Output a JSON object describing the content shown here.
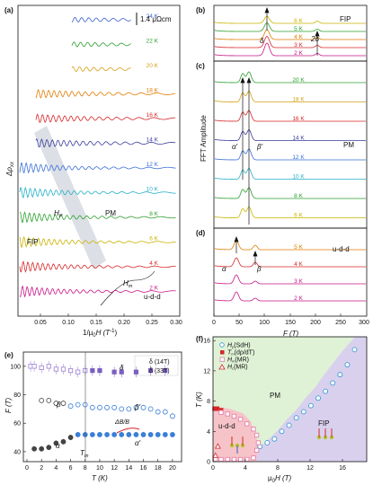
{
  "panels": {
    "a": {
      "label": "(a)",
      "ylabel": "Δρ",
      "ylabel_sub": "xx",
      "xlabel": "1/μ",
      "xlabel_sub": "0",
      "xlabel_end": "H (T",
      "xlabel_sup": "-1",
      "xlabel_close": ")",
      "xticks": [
        "0.05",
        "0.10",
        "0.15",
        "0.20",
        "0.25",
        "0.30"
      ],
      "scalebar": "1.4 μΩcm",
      "region_fip": "FIP",
      "region_pm": "PM",
      "region_udd": "u-d-d",
      "hp_label": "H",
      "hp_sub": "P",
      "hm_label": "H",
      "hm_sub": "m",
      "temps": [
        "24 K",
        "22 K",
        "20 K",
        "18 K",
        "16 K",
        "14 K",
        "12 K",
        "10 K",
        "8 K",
        "6 K",
        "4 K",
        "2 K"
      ],
      "colors": [
        "#3a5fcd",
        "#2ca02c",
        "#d4a017",
        "#e07b00",
        "#d62728",
        "#3b3b9c",
        "#3a6fd8",
        "#27b0c8",
        "#2ca02c",
        "#c9b400",
        "#d62728",
        "#c71585"
      ]
    },
    "b": {
      "label": "(b)",
      "tag": "FIP",
      "temps": [
        "6 K",
        "5 K",
        "4 K",
        "3 K",
        "2 K"
      ],
      "colors": [
        "#c9b400",
        "#2ca02c",
        "#e07b00",
        "#d62728",
        "#c71585"
      ],
      "delta": "δ",
      "two_delta": "2δ"
    },
    "c": {
      "label": "(c)",
      "tag": "PM",
      "ylabel": "FFT Amplitude",
      "temps": [
        "20 K",
        "18 K",
        "16 K",
        "14 K",
        "12 K",
        "10 K",
        "8 K",
        "6 K"
      ],
      "colors": [
        "#2ca02c",
        "#d4a017",
        "#d62728",
        "#3b3b9c",
        "#3a6fd8",
        "#27b0c8",
        "#2ca02c",
        "#c9b400"
      ],
      "alpha_p": "α′",
      "beta_p": "β′"
    },
    "d": {
      "label": "(d)",
      "tag": "u-d-d",
      "temps": [
        "5 K",
        "4 K",
        "3 K",
        "2 K"
      ],
      "colors": [
        "#e07b00",
        "#d62728",
        "#c71585",
        "#c71585"
      ],
      "alpha": "α",
      "beta": "β",
      "xlabel": "F (T)",
      "xticks": [
        "0",
        "50",
        "100",
        "150",
        "200",
        "250",
        "300"
      ]
    },
    "e": {
      "label": "(e)",
      "ylabel": "F (T)",
      "xlabel": "T (K)",
      "yticks": [
        "40",
        "60",
        "80",
        "100"
      ],
      "xticks": [
        "0",
        "2",
        "4",
        "6",
        "8",
        "10",
        "12",
        "14",
        "16",
        "18",
        "20"
      ],
      "legend": [
        "δ (14T)",
        "δ (33T)"
      ],
      "labels": {
        "delta": "δ",
        "beta": "β",
        "alpha": "α",
        "beta_p": "β′",
        "alpha_p": "α′",
        "tm": "T",
        "tm_sub": "m",
        "db": "ΔB/B"
      }
    },
    "f": {
      "label": "(f)",
      "ylabel": "T (K)",
      "xlabel": "μ",
      "xlabel_sub": "0",
      "xlabel_end": "H (T)",
      "yticks": [
        "0",
        "4",
        "8",
        "12",
        "16"
      ],
      "xticks": [
        "0",
        "4",
        "8",
        "12",
        "16"
      ],
      "legend": [
        {
          "sym": "H",
          "sub": "p",
          "src": "(SdH)"
        },
        {
          "sym": "T",
          "sub": "m",
          "src": "(dρ/dT)"
        },
        {
          "sym": "H",
          "sub": "m",
          "src": "(MR)"
        },
        {
          "sym": "H",
          "sub": "c",
          "src": "(MR)"
        }
      ],
      "regions": {
        "pm": "PM",
        "udd": "u-d-d",
        "fip": "FIP"
      }
    }
  },
  "chart_data": [
    {
      "panel": "e",
      "type": "scatter",
      "xlabel": "T (K)",
      "ylabel": "F (T)",
      "xlim": [
        0,
        21
      ],
      "ylim": [
        33,
        110
      ],
      "series": [
        {
          "name": "δ (14T)",
          "marker": "square-open",
          "color": "#9b7fd4",
          "x": [
            0.5,
            1,
            2,
            3,
            4,
            5,
            6,
            7,
            8
          ],
          "y": [
            100,
            100,
            99,
            100,
            98,
            98,
            97,
            96,
            97
          ]
        },
        {
          "name": "δ (33T)",
          "marker": "square-filled",
          "color": "#7b5ec0",
          "x": [
            9,
            10,
            12,
            13,
            15,
            17,
            19
          ],
          "y": [
            97,
            97,
            96,
            96,
            96,
            97,
            97
          ]
        },
        {
          "marker": "circle-open",
          "color": "#444",
          "x": [
            2,
            3,
            4,
            5
          ],
          "y": [
            76,
            76,
            74,
            74
          ]
        },
        {
          "marker": "circle-open",
          "color": "#3a7fd8",
          "x": [
            6,
            7,
            8,
            9,
            10,
            11,
            12,
            13,
            14,
            15,
            16,
            17,
            18,
            19,
            20
          ],
          "y": [
            72,
            73,
            73,
            71,
            71,
            71,
            71,
            70,
            70,
            71,
            71,
            70,
            68,
            68,
            65
          ]
        },
        {
          "marker": "circle-filled",
          "color": "#444",
          "x": [
            1,
            2,
            3,
            4,
            5,
            6
          ],
          "y": [
            42,
            42,
            43,
            46,
            47,
            50
          ]
        },
        {
          "marker": "circle-filled",
          "color": "#3a7fd8",
          "x": [
            7,
            8,
            9,
            10,
            11,
            12,
            13,
            14,
            15,
            16,
            17,
            18,
            19,
            20
          ],
          "y": [
            52,
            52,
            52,
            52,
            52,
            52,
            52,
            52,
            52,
            52,
            52,
            52,
            52,
            52
          ]
        }
      ]
    },
    {
      "panel": "f",
      "type": "scatter",
      "xlabel": "μ0H (T)",
      "ylabel": "T (K)",
      "xlim": [
        0,
        19
      ],
      "ylim": [
        0,
        16.5
      ],
      "series": [
        {
          "name": "Hp (SdH)",
          "marker": "circle-open",
          "color": "#3a9ad8",
          "x": [
            5.8,
            6.7,
            7.6,
            8.5,
            9.4,
            10.3,
            11.2,
            12.1,
            13,
            13.9,
            14.8,
            15.7,
            16.6,
            17.5
          ],
          "y": [
            2,
            2.5,
            3,
            4,
            4.8,
            5.8,
            6.6,
            7.4,
            8.4,
            9.3,
            10.4,
            11.5,
            12.8,
            14.8
          ]
        },
        {
          "name": "Tm (dρ/dT)",
          "marker": "square-filled",
          "color": "#d62728",
          "x": [
            0.2,
            0.5,
            1
          ],
          "y": [
            7,
            7,
            6.8
          ]
        },
        {
          "name": "Hm (MR)",
          "marker": "square-open",
          "color": "#e87fa8",
          "x": [
            0.3,
            1,
            1.8,
            2.6,
            3.4,
            4.2,
            5,
            5.4,
            5.6,
            5.4,
            5,
            4.2,
            3.4,
            2.6,
            1.8,
            1
          ],
          "y": [
            0.3,
            0.3,
            0.3,
            0.3,
            0.3,
            0.3,
            0.5,
            1.5,
            2.5,
            3.5,
            4.3,
            5,
            5.6,
            6,
            6.3,
            6.5
          ]
        },
        {
          "name": "Hc (MR)",
          "marker": "triangle-open",
          "color": "#d62728",
          "x": [
            0.3,
            0.6
          ],
          "y": [
            0.8,
            2
          ]
        }
      ]
    }
  ]
}
